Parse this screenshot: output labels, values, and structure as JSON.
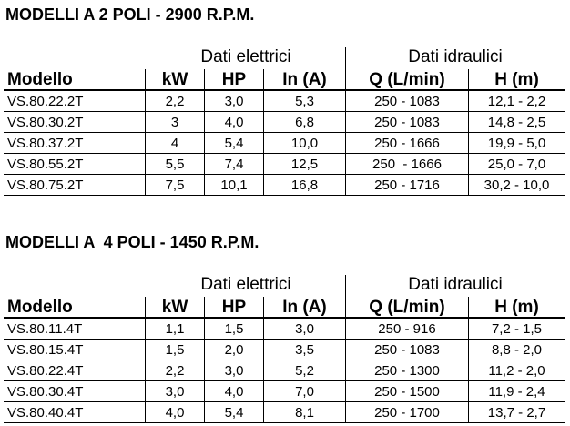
{
  "sections": [
    {
      "title": "MODELLI A 2 POLI - 2900 R.P.M.",
      "groups": [
        "Dati elettrici",
        "Dati idraulici"
      ],
      "columns": [
        "Modello",
        "kW",
        "HP",
        "In (A)",
        "Q (L/min)",
        "H (m)"
      ],
      "rows": [
        [
          "VS.80.22.2T",
          "2,2",
          "3,0",
          "5,3",
          "250 - 1083",
          "12,1 - 2,2"
        ],
        [
          "VS.80.30.2T",
          "3",
          "4,0",
          "6,8",
          "250 - 1083",
          "14,8 - 2,5"
        ],
        [
          "VS.80.37.2T",
          "4",
          "5,4",
          "10,0",
          "250 - 1666",
          "19,9 - 5,0"
        ],
        [
          "VS.80.55.2T",
          "5,5",
          "7,4",
          "12,5",
          "250  - 1666",
          "25,0 - 7,0"
        ],
        [
          "VS.80.75.2T",
          "7,5",
          "10,1",
          "16,8",
          "250 - 1716",
          "30,2 - 10,0"
        ]
      ]
    },
    {
      "title": "MODELLI A  4 POLI - 1450 R.P.M.",
      "groups": [
        "Dati elettrici",
        "Dati idraulici"
      ],
      "columns": [
        "Modello",
        "kW",
        "HP",
        "In (A)",
        "Q (L/min)",
        "H (m)"
      ],
      "rows": [
        [
          "VS.80.11.4T",
          "1,1",
          "1,5",
          "3,0",
          "250 - 916",
          "7,2 - 1,5"
        ],
        [
          "VS.80.15.4T",
          "1,5",
          "2,0",
          "3,5",
          "250 - 1083",
          "8,8 - 2,0"
        ],
        [
          "VS.80.22.4T",
          "2,2",
          "3,0",
          "5,2",
          "250 - 1300",
          "11,2 - 2,0"
        ],
        [
          "VS.80.30.4T",
          "3,0",
          "4,0",
          "7,0",
          "250 - 1500",
          "11,9 - 2,4"
        ],
        [
          "VS.80.40.4T",
          "4,0",
          "5,4",
          "8,1",
          "250 - 1700",
          "13,7 - 2,7"
        ]
      ]
    }
  ]
}
